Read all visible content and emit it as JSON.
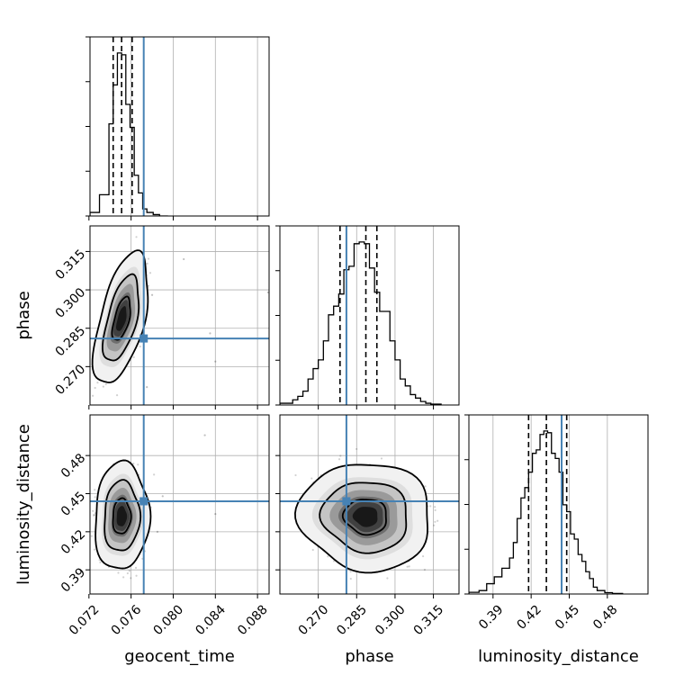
{
  "chart_data": {
    "type": "corner",
    "parameters": [
      "geocent_time",
      "phase",
      "luminosity_distance"
    ],
    "truths": {
      "geocent_time": 0.0772,
      "phase": 0.281,
      "luminosity_distance": 0.444
    },
    "truth_color": "#4682b4",
    "ranges": {
      "geocent_time": [
        0.0721,
        0.0891
      ],
      "phase": [
        0.255,
        0.325
      ],
      "luminosity_distance": [
        0.371,
        0.512
      ]
    },
    "ticks": {
      "geocent_time": [
        0.072,
        0.076,
        0.08,
        0.084,
        0.088
      ],
      "phase": [
        0.27,
        0.285,
        0.3,
        0.315
      ],
      "luminosity_distance": [
        0.39,
        0.42,
        0.45,
        0.48
      ]
    },
    "tick_labels": {
      "geocent_time": [
        "0.072",
        "0.076",
        "0.080",
        "0.084",
        "0.088"
      ],
      "phase": [
        "0.270",
        "0.285",
        "0.300",
        "0.315"
      ],
      "luminosity_distance": [
        "0.39",
        "0.42",
        "0.45",
        "0.48"
      ]
    },
    "quantiles": {
      "geocent_time": [
        0.0743,
        0.0751,
        0.0761
      ],
      "phase": [
        0.2785,
        0.2886,
        0.2929
      ],
      "luminosity_distance": [
        0.418,
        0.432,
        0.448
      ]
    },
    "histograms": {
      "geocent_time": {
        "edges": [
          0.0721,
          0.073,
          0.0739,
          0.0743,
          0.0747,
          0.0751,
          0.0755,
          0.0759,
          0.0763,
          0.0767,
          0.0771,
          0.0775,
          0.0781,
          0.0787,
          0.0795
        ],
        "counts": [
          0.02,
          0.12,
          0.52,
          0.74,
          0.92,
          0.91,
          0.63,
          0.5,
          0.23,
          0.13,
          0.04,
          0.02,
          0.008,
          0
        ]
      },
      "phase": {
        "edges": [
          0.255,
          0.26,
          0.262,
          0.264,
          0.266,
          0.268,
          0.27,
          0.272,
          0.274,
          0.276,
          0.278,
          0.28,
          0.282,
          0.284,
          0.286,
          0.288,
          0.29,
          0.292,
          0.294,
          0.296,
          0.298,
          0.3,
          0.302,
          0.304,
          0.306,
          0.308,
          0.31,
          0.312,
          0.314,
          0.318
        ],
        "counts": [
          0.01,
          0.03,
          0.05,
          0.08,
          0.15,
          0.21,
          0.26,
          0.37,
          0.52,
          0.57,
          0.64,
          0.78,
          0.8,
          0.93,
          0.94,
          0.93,
          0.79,
          0.65,
          0.54,
          0.54,
          0.37,
          0.26,
          0.15,
          0.11,
          0.06,
          0.04,
          0.02,
          0.01,
          0.005
        ]
      },
      "luminosity_distance": {
        "edges": [
          0.371,
          0.379,
          0.385,
          0.391,
          0.397,
          0.403,
          0.406,
          0.409,
          0.412,
          0.415,
          0.418,
          0.421,
          0.424,
          0.427,
          0.43,
          0.433,
          0.436,
          0.439,
          0.442,
          0.445,
          0.448,
          0.451,
          0.454,
          0.457,
          0.46,
          0.463,
          0.466,
          0.469,
          0.472,
          0.478,
          0.484,
          0.492
        ],
        "counts": [
          0.01,
          0.02,
          0.06,
          0.1,
          0.15,
          0.21,
          0.3,
          0.44,
          0.56,
          0.62,
          0.71,
          0.82,
          0.84,
          0.93,
          0.95,
          0.94,
          0.82,
          0.79,
          0.71,
          0.52,
          0.48,
          0.35,
          0.32,
          0.23,
          0.19,
          0.13,
          0.09,
          0.04,
          0.02,
          0.008,
          0.003
        ]
      }
    },
    "pairs": [
      {
        "x": "geocent_time",
        "y": "phase",
        "mean": [
          0.0751,
          0.2886
        ],
        "std": [
          0.00085,
          0.0085
        ],
        "corr": 0.55,
        "extra_points": [
          [
            0.084,
            0.272
          ],
          [
            0.089,
            0.299
          ],
          [
            0.0835,
            0.283
          ],
          [
            0.078,
            0.298
          ],
          [
            0.081,
            0.312
          ],
          [
            0.0775,
            0.262
          ]
        ]
      },
      {
        "x": "geocent_time",
        "y": "luminosity_distance",
        "mean": [
          0.0751,
          0.432
        ],
        "std": [
          0.00085,
          0.014
        ],
        "corr": 0.05,
        "extra_points": [
          [
            0.084,
            0.434
          ],
          [
            0.083,
            0.496
          ],
          [
            0.079,
            0.448
          ],
          [
            0.0785,
            0.42
          ]
        ]
      },
      {
        "x": "phase",
        "y": "luminosity_distance",
        "mean": [
          0.2886,
          0.432
        ],
        "std": [
          0.0085,
          0.014
        ],
        "corr": -0.05,
        "extra_points": []
      }
    ],
    "contour_levels": [
      0.39,
      0.86,
      0.99
    ],
    "grid": true
  }
}
